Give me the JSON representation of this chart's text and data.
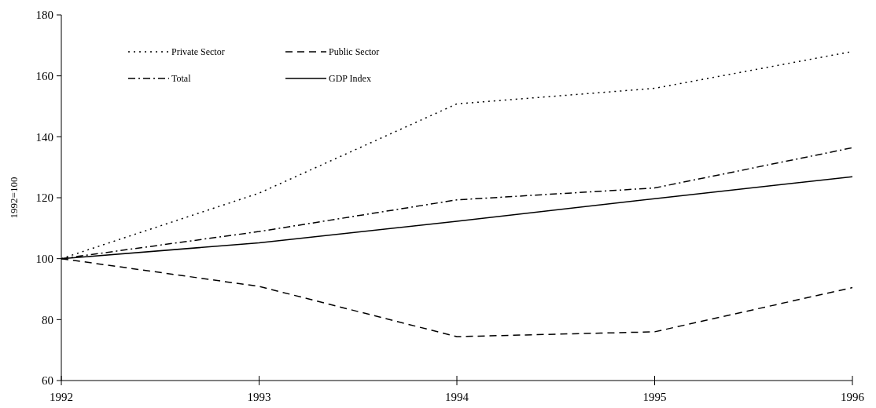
{
  "chart_data": {
    "type": "line",
    "ylabel": "1992=100",
    "x": [
      1992,
      1993,
      1994,
      1995,
      1996
    ],
    "xlim": [
      1992,
      1996
    ],
    "xticks": [
      1992,
      1993,
      1994,
      1995,
      1996
    ],
    "ylim": [
      60,
      180
    ],
    "yticks": [
      60,
      80,
      100,
      120,
      140,
      160,
      180
    ],
    "legend": "top left",
    "grid": false,
    "series": [
      {
        "name": "Private Sector",
        "color": "#000000",
        "line_style": "dotted",
        "values": [
          100,
          121.5,
          150.8,
          155.9,
          168.0
        ]
      },
      {
        "name": "Public Sector",
        "color": "#000000",
        "line_style": "dashed",
        "values": [
          100,
          90.9,
          74.4,
          76.0,
          90.5
        ]
      },
      {
        "name": "Total",
        "color": "#000000",
        "line_style": "dashdot",
        "values": [
          100,
          108.9,
          119.3,
          123.2,
          136.4
        ]
      },
      {
        "name": "GDP Index",
        "color": "#000000",
        "line_style": "solid",
        "values": [
          100,
          105.2,
          112.3,
          119.7,
          126.9
        ]
      }
    ]
  }
}
